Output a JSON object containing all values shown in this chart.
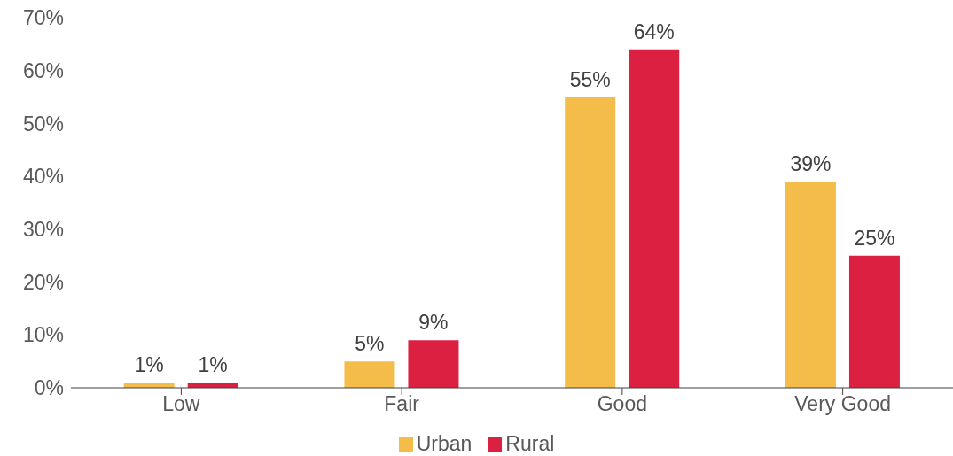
{
  "chart_data": {
    "type": "bar",
    "categories": [
      "Low",
      "Fair",
      "Good",
      "Very Good"
    ],
    "series": [
      {
        "name": "Urban",
        "color": "#f4bc48",
        "values": [
          1,
          5,
          55,
          39
        ],
        "value_labels": [
          "1%",
          "5%",
          "55%",
          "39%"
        ]
      },
      {
        "name": "Rural",
        "color": "#dc2041",
        "values": [
          1,
          9,
          64,
          25
        ],
        "value_labels": [
          "1%",
          "9%",
          "64%",
          "25%"
        ]
      }
    ],
    "ylim": [
      0,
      70
    ],
    "yticks": [
      {
        "value": 0,
        "label": "0%"
      },
      {
        "value": 10,
        "label": "10%"
      },
      {
        "value": 20,
        "label": "20%"
      },
      {
        "value": 30,
        "label": "30%"
      },
      {
        "value": 40,
        "label": "40%"
      },
      {
        "value": 50,
        "label": "50%"
      },
      {
        "value": 60,
        "label": "60%"
      },
      {
        "value": 70,
        "label": "70%"
      }
    ],
    "grid": false,
    "legend": "bottom"
  }
}
